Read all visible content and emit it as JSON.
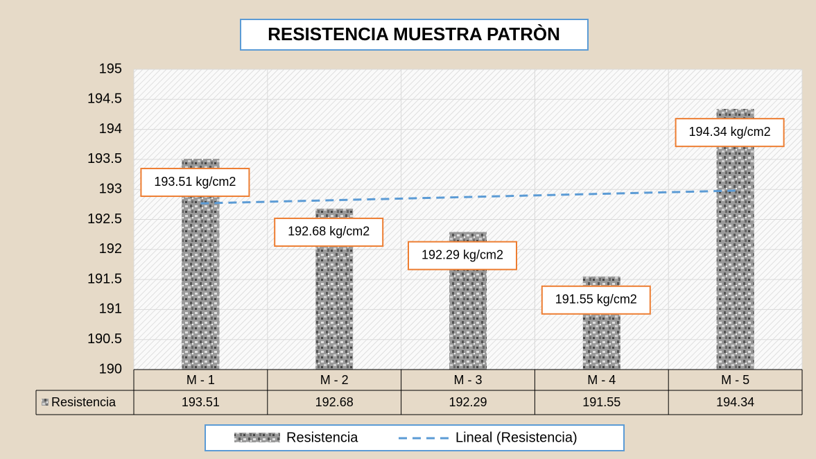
{
  "chart_data": {
    "type": "bar",
    "title": "RESISTENCIA MUESTRA PATRÒN",
    "categories": [
      "M - 1",
      "M - 2",
      "M - 3",
      "M - 4",
      "M - 5"
    ],
    "series": [
      {
        "name": "Resistencia",
        "color": "#8a8a8a",
        "values": [
          193.51,
          192.68,
          192.29,
          191.55,
          194.34
        ],
        "value_labels": [
          "193.51 kg/cm2",
          "192.68 kg/cm2",
          "192.29 kg/cm2",
          "191.55 kg/cm2",
          "194.34 kg/cm2"
        ]
      }
    ],
    "trendline": {
      "name": "Lineal (Resistencia)",
      "color": "#5b9bd5"
    },
    "ylim": [
      190,
      195
    ],
    "yticks": [
      190,
      190.5,
      191,
      191.5,
      192,
      192.5,
      193,
      193.5,
      194,
      194.5,
      195
    ],
    "grid": true,
    "data_table": true,
    "legend": "bottom"
  }
}
